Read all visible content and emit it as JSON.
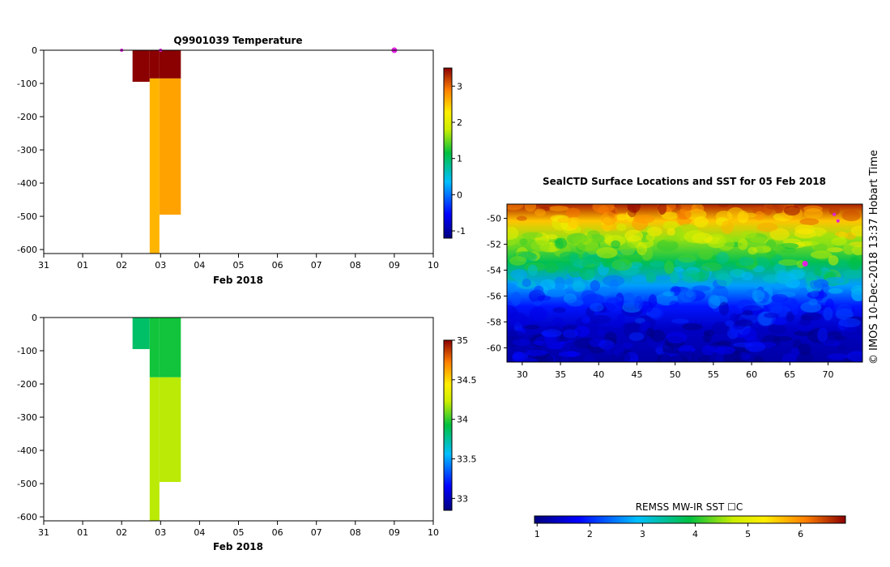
{
  "chart_data": [
    {
      "type": "heatmap",
      "title": "Q9901039  Temperature",
      "xlabel": "Feb 2018",
      "x_ticks": [
        "31",
        "01",
        "02",
        "03",
        "04",
        "05",
        "06",
        "07",
        "08",
        "09",
        "10"
      ],
      "x_range_days": [
        0,
        10
      ],
      "y_ticks": [
        0,
        -100,
        -200,
        -300,
        -400,
        -500,
        -600
      ],
      "ylim": [
        -612,
        0
      ],
      "colorbar": {
        "min": -1.2,
        "max": 3.5,
        "ticks": [
          3,
          2,
          1,
          0,
          -1
        ]
      },
      "profiles": [
        {
          "x_start": 2.28,
          "x_end": 2.72,
          "depth_bottom": -95,
          "value": 3.5
        },
        {
          "x_start": 2.72,
          "x_end": 2.97,
          "depth_bottom": -612,
          "value": 2.6,
          "warm_top_to": -85
        },
        {
          "x_start": 2.97,
          "x_end": 3.52,
          "depth_bottom": -495,
          "value": 2.7,
          "warm_top_to": -85
        }
      ],
      "surface_markers": [
        {
          "day": 2.0,
          "style": "small"
        },
        {
          "day": 3.0,
          "style": "small"
        },
        {
          "day": 9.0,
          "style": "large"
        }
      ]
    },
    {
      "type": "heatmap",
      "title": "",
      "xlabel": "Feb 2018",
      "x_ticks": [
        "31",
        "01",
        "02",
        "03",
        "04",
        "05",
        "06",
        "07",
        "08",
        "09",
        "10"
      ],
      "x_range_days": [
        0,
        10
      ],
      "y_ticks": [
        0,
        -100,
        -200,
        -300,
        -400,
        -500,
        -600
      ],
      "ylim": [
        -612,
        0
      ],
      "colorbar": {
        "min": 32.85,
        "max": 35,
        "ticks": [
          35,
          34.5,
          34,
          33.5,
          33
        ]
      },
      "profiles": [
        {
          "x_start": 2.28,
          "x_end": 2.72,
          "depth_bottom": -95,
          "value": 33.85
        },
        {
          "x_start": 2.72,
          "x_end": 2.97,
          "depth_bottom": -612,
          "value": 34.2,
          "top_value": 33.95,
          "transition_depth": -180
        },
        {
          "x_start": 2.97,
          "x_end": 3.52,
          "depth_bottom": -495,
          "value": 34.2,
          "top_value": 33.95,
          "transition_depth": -180
        }
      ]
    },
    {
      "type": "heatmap",
      "title": "SealCTD Surface Locations and SST for 05 Feb 2018",
      "xlabel": "",
      "x_ticks": [
        30,
        35,
        40,
        45,
        50,
        55,
        60,
        65,
        70
      ],
      "xlim": [
        28,
        74.5
      ],
      "y_ticks": [
        -50,
        -52,
        -54,
        -56,
        -58,
        -60
      ],
      "ylim": [
        -61.1,
        -48.9
      ],
      "colorbar_label": "REMSS MW-IR SST ☐C",
      "colorbar": {
        "min": 0.95,
        "max": 6.85,
        "ticks": [
          1,
          2,
          3,
          4,
          5,
          6
        ]
      },
      "sst_gradient_by_latitude": [
        {
          "lat": -49.0,
          "value": 6.6
        },
        {
          "lat": -50.2,
          "value": 5.6
        },
        {
          "lat": -51.6,
          "value": 4.5
        },
        {
          "lat": -53.4,
          "value": 3.8
        },
        {
          "lat": -55.2,
          "value": 2.7
        },
        {
          "lat": -56.8,
          "value": 1.9
        },
        {
          "lat": -58.5,
          "value": 1.4
        },
        {
          "lat": -61.0,
          "value": 1.2
        }
      ],
      "surface_locations": [
        {
          "lon": 67.0,
          "lat": -53.5,
          "style": "large"
        },
        {
          "lon": 70.8,
          "lat": -49.7,
          "style": "small"
        },
        {
          "lon": 71.3,
          "lat": -50.2,
          "style": "small"
        }
      ]
    }
  ],
  "credit": "© IMOS 10-Dec-2018 13:37 Hobart Time",
  "colors": {
    "marker": "#e020e0",
    "axis": "#000000",
    "background": "#ffffff"
  }
}
